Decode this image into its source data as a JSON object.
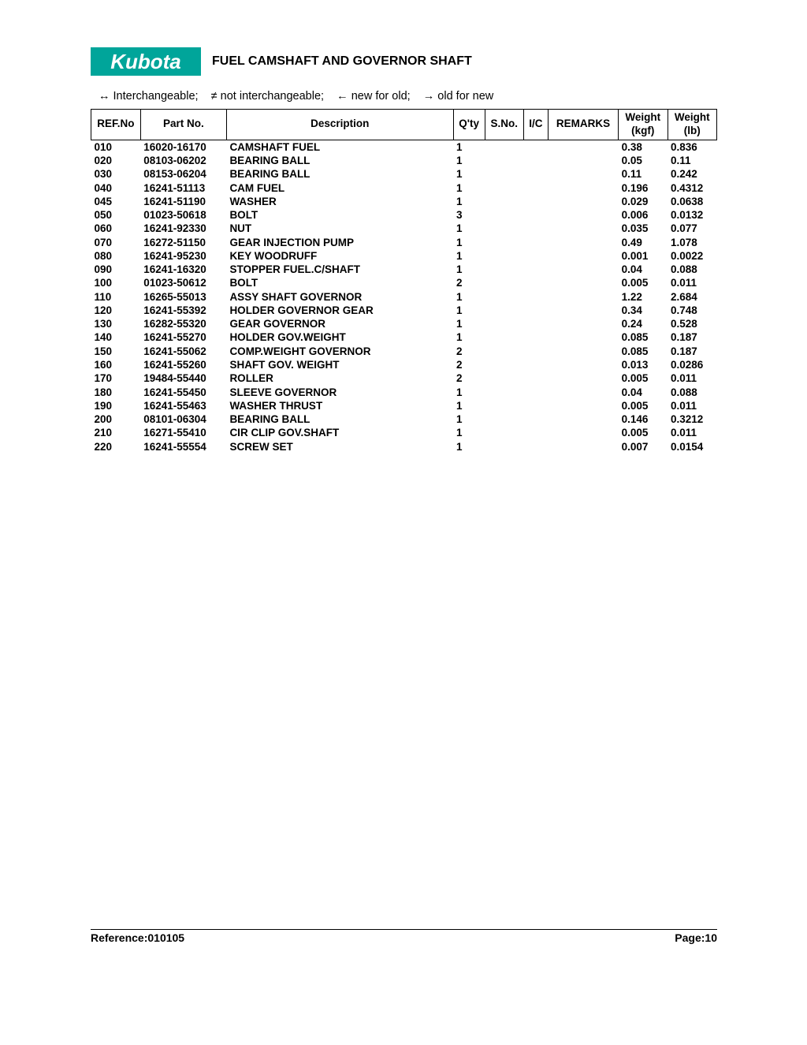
{
  "logo_text": "Kubota",
  "title": "FUEL CAMSHAFT AND GOVERNOR SHAFT",
  "legend": "↔ Interchangeable;    ≠ not interchangeable;    ← new for old;    → old for new",
  "columns": {
    "refno": "REF.No",
    "partno": "Part No.",
    "desc": "Description",
    "qty": "Q'ty",
    "sno": "S.No.",
    "ic": "I/C",
    "remarks": "REMARKS",
    "wkg_l1": "Weight",
    "wkg_l2": "(kgf)",
    "wlb_l1": "Weight",
    "wlb_l2": "(lb)"
  },
  "rows": [
    {
      "ref": "010",
      "pn": "16020-16170",
      "desc": "CAMSHAFT FUEL",
      "qty": "1",
      "sno": "",
      "ic": "",
      "rem": "",
      "kg": "0.38",
      "lb": "0.836"
    },
    {
      "ref": "020",
      "pn": "08103-06202",
      "desc": "BEARING BALL",
      "qty": "1",
      "sno": "",
      "ic": "",
      "rem": "",
      "kg": "0.05",
      "lb": "0.11"
    },
    {
      "ref": "030",
      "pn": "08153-06204",
      "desc": "BEARING BALL",
      "qty": "1",
      "sno": "",
      "ic": "",
      "rem": "",
      "kg": "0.11",
      "lb": "0.242"
    },
    {
      "ref": "040",
      "pn": "16241-51113",
      "desc": "CAM FUEL",
      "qty": "1",
      "sno": "",
      "ic": "",
      "rem": "",
      "kg": "0.196",
      "lb": "0.4312"
    },
    {
      "ref": "045",
      "pn": "16241-51190",
      "desc": "WASHER",
      "qty": "1",
      "sno": "",
      "ic": "",
      "rem": "",
      "kg": "0.029",
      "lb": "0.0638"
    },
    {
      "ref": "050",
      "pn": "01023-50618",
      "desc": "BOLT",
      "qty": "3",
      "sno": "",
      "ic": "",
      "rem": "",
      "kg": "0.006",
      "lb": "0.0132"
    },
    {
      "ref": "060",
      "pn": "16241-92330",
      "desc": "NUT",
      "qty": "1",
      "sno": "",
      "ic": "",
      "rem": "",
      "kg": "0.035",
      "lb": "0.077"
    },
    {
      "ref": "070",
      "pn": "16272-51150",
      "desc": "GEAR INJECTION PUMP",
      "qty": "1",
      "sno": "",
      "ic": "",
      "rem": "",
      "kg": "0.49",
      "lb": "1.078"
    },
    {
      "ref": "080",
      "pn": "16241-95230",
      "desc": "KEY WOODRUFF",
      "qty": "1",
      "sno": "",
      "ic": "",
      "rem": "",
      "kg": "0.001",
      "lb": "0.0022"
    },
    {
      "ref": "090",
      "pn": "16241-16320",
      "desc": "STOPPER FUEL.C/SHAFT",
      "qty": "1",
      "sno": "",
      "ic": "",
      "rem": "",
      "kg": "0.04",
      "lb": "0.088"
    },
    {
      "ref": "100",
      "pn": "01023-50612",
      "desc": "BOLT",
      "qty": "2",
      "sno": "",
      "ic": "",
      "rem": "",
      "kg": "0.005",
      "lb": "0.011"
    },
    {
      "ref": "110",
      "pn": "16265-55013",
      "desc": "ASSY SHAFT GOVERNOR",
      "qty": "1",
      "sno": "",
      "ic": "",
      "rem": "",
      "kg": "1.22",
      "lb": "2.684"
    },
    {
      "ref": "120",
      "pn": "16241-55392",
      "desc": "HOLDER GOVERNOR GEAR",
      "qty": "1",
      "sno": "",
      "ic": "",
      "rem": "",
      "kg": "0.34",
      "lb": "0.748"
    },
    {
      "ref": "130",
      "pn": "16282-55320",
      "desc": "GEAR GOVERNOR",
      "qty": "1",
      "sno": "",
      "ic": "",
      "rem": "",
      "kg": "0.24",
      "lb": "0.528"
    },
    {
      "ref": "140",
      "pn": "16241-55270",
      "desc": "HOLDER GOV.WEIGHT",
      "qty": "1",
      "sno": "",
      "ic": "",
      "rem": "",
      "kg": "0.085",
      "lb": "0.187"
    },
    {
      "ref": "150",
      "pn": "16241-55062",
      "desc": "COMP.WEIGHT GOVERNOR",
      "qty": "2",
      "sno": "",
      "ic": "",
      "rem": "",
      "kg": "0.085",
      "lb": "0.187"
    },
    {
      "ref": "160",
      "pn": "16241-55260",
      "desc": "SHAFT GOV. WEIGHT",
      "qty": "2",
      "sno": "",
      "ic": "",
      "rem": "",
      "kg": "0.013",
      "lb": "0.0286"
    },
    {
      "ref": "170",
      "pn": "19484-55440",
      "desc": "ROLLER",
      "qty": "2",
      "sno": "",
      "ic": "",
      "rem": "",
      "kg": "0.005",
      "lb": "0.011"
    },
    {
      "ref": "180",
      "pn": "16241-55450",
      "desc": "SLEEVE GOVERNOR",
      "qty": "1",
      "sno": "",
      "ic": "",
      "rem": "",
      "kg": "0.04",
      "lb": "0.088"
    },
    {
      "ref": "190",
      "pn": "16241-55463",
      "desc": "WASHER THRUST",
      "qty": "1",
      "sno": "",
      "ic": "",
      "rem": "",
      "kg": "0.005",
      "lb": "0.011"
    },
    {
      "ref": "200",
      "pn": "08101-06304",
      "desc": "BEARING BALL",
      "qty": "1",
      "sno": "",
      "ic": "",
      "rem": "",
      "kg": "0.146",
      "lb": "0.3212"
    },
    {
      "ref": "210",
      "pn": "16271-55410",
      "desc": "CIR CLIP GOV.SHAFT",
      "qty": "1",
      "sno": "",
      "ic": "",
      "rem": "",
      "kg": "0.005",
      "lb": "0.011"
    },
    {
      "ref": "220",
      "pn": "16241-55554",
      "desc": "SCREW SET",
      "qty": "1",
      "sno": "",
      "ic": "",
      "rem": "",
      "kg": "0.007",
      "lb": "0.0154"
    }
  ],
  "footer": {
    "reference_label": "Reference:",
    "reference_value": "010105",
    "page_label": "Page:",
    "page_value": "10"
  }
}
